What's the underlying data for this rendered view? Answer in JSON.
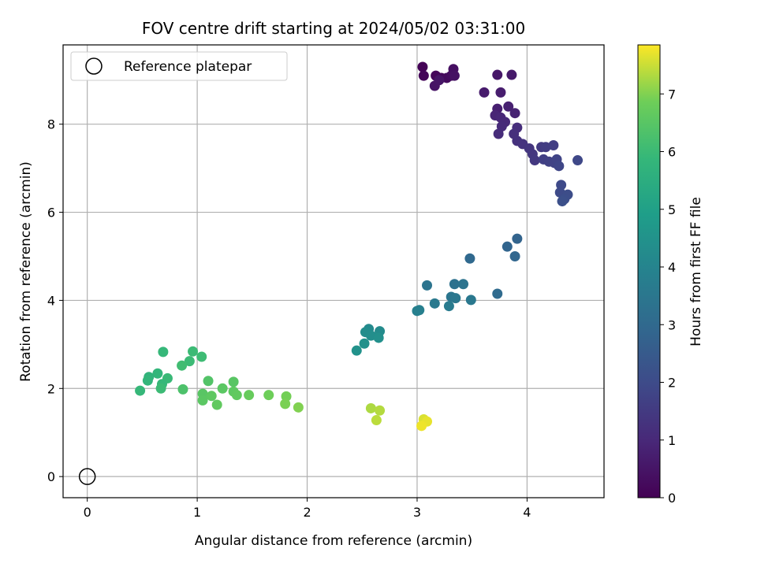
{
  "chart_data": {
    "type": "scatter",
    "title": "FOV centre drift starting at 2024/05/02 03:31:00",
    "xlabel": "Angular distance from reference (arcmin)",
    "ylabel": "Rotation from reference (arcmin)",
    "xlim": [
      -0.22,
      4.7
    ],
    "ylim": [
      -0.48,
      9.8
    ],
    "xticks": [
      0,
      1,
      2,
      3,
      4
    ],
    "yticks": [
      0,
      2,
      4,
      6,
      8
    ],
    "grid": true,
    "colormap": "viridis",
    "colorbar": {
      "label": "Hours from first FF file",
      "range": [
        0,
        7.85
      ],
      "ticks": [
        0,
        1,
        2,
        3,
        4,
        5,
        6,
        7
      ]
    },
    "reference": {
      "name": "Reference platepar",
      "x": 0,
      "y": 0
    },
    "legend": {
      "placement": "upper-left",
      "entries": [
        "Reference platepar"
      ]
    },
    "points": [
      {
        "x": 3.05,
        "y": 9.3,
        "h": 0.05
      },
      {
        "x": 3.06,
        "y": 9.1,
        "h": 0.1
      },
      {
        "x": 3.17,
        "y": 9.1,
        "h": 0.15
      },
      {
        "x": 3.22,
        "y": 9.05,
        "h": 0.2
      },
      {
        "x": 3.27,
        "y": 9.05,
        "h": 0.25
      },
      {
        "x": 3.31,
        "y": 9.1,
        "h": 0.3
      },
      {
        "x": 3.33,
        "y": 9.25,
        "h": 0.35
      },
      {
        "x": 3.34,
        "y": 9.1,
        "h": 0.4
      },
      {
        "x": 3.16,
        "y": 8.87,
        "h": 0.45
      },
      {
        "x": 3.2,
        "y": 9.0,
        "h": 0.5
      },
      {
        "x": 3.73,
        "y": 9.12,
        "h": 0.55
      },
      {
        "x": 3.86,
        "y": 9.12,
        "h": 0.6
      },
      {
        "x": 3.61,
        "y": 8.72,
        "h": 0.65
      },
      {
        "x": 3.76,
        "y": 8.72,
        "h": 0.7
      },
      {
        "x": 3.73,
        "y": 8.35,
        "h": 0.75
      },
      {
        "x": 3.83,
        "y": 8.4,
        "h": 0.8
      },
      {
        "x": 3.89,
        "y": 8.25,
        "h": 0.85
      },
      {
        "x": 3.71,
        "y": 8.2,
        "h": 0.9
      },
      {
        "x": 3.76,
        "y": 8.15,
        "h": 0.95
      },
      {
        "x": 3.8,
        "y": 8.05,
        "h": 1.0
      },
      {
        "x": 3.77,
        "y": 7.95,
        "h": 1.05
      },
      {
        "x": 3.74,
        "y": 7.78,
        "h": 1.1
      },
      {
        "x": 3.91,
        "y": 7.92,
        "h": 1.15
      },
      {
        "x": 3.88,
        "y": 7.78,
        "h": 1.2
      },
      {
        "x": 3.91,
        "y": 7.62,
        "h": 1.25
      },
      {
        "x": 3.96,
        "y": 7.55,
        "h": 1.3
      },
      {
        "x": 4.02,
        "y": 7.45,
        "h": 1.35
      },
      {
        "x": 4.05,
        "y": 7.32,
        "h": 1.4
      },
      {
        "x": 4.07,
        "y": 7.18,
        "h": 1.45
      },
      {
        "x": 4.13,
        "y": 7.48,
        "h": 1.5
      },
      {
        "x": 4.17,
        "y": 7.48,
        "h": 1.55
      },
      {
        "x": 4.24,
        "y": 7.52,
        "h": 1.6
      },
      {
        "x": 4.15,
        "y": 7.2,
        "h": 1.65
      },
      {
        "x": 4.2,
        "y": 7.15,
        "h": 1.7
      },
      {
        "x": 4.25,
        "y": 7.12,
        "h": 1.75
      },
      {
        "x": 4.27,
        "y": 7.2,
        "h": 1.8
      },
      {
        "x": 4.29,
        "y": 7.05,
        "h": 1.85
      },
      {
        "x": 4.46,
        "y": 7.18,
        "h": 1.9
      },
      {
        "x": 4.31,
        "y": 6.62,
        "h": 1.95
      },
      {
        "x": 4.3,
        "y": 6.45,
        "h": 2.0
      },
      {
        "x": 4.37,
        "y": 6.4,
        "h": 2.05
      },
      {
        "x": 4.34,
        "y": 6.3,
        "h": 2.1
      },
      {
        "x": 4.32,
        "y": 6.25,
        "h": 2.15
      },
      {
        "x": 3.91,
        "y": 5.4,
        "h": 2.8
      },
      {
        "x": 3.82,
        "y": 5.22,
        "h": 2.85
      },
      {
        "x": 3.89,
        "y": 5.0,
        "h": 2.9
      },
      {
        "x": 3.48,
        "y": 4.95,
        "h": 3.0
      },
      {
        "x": 3.73,
        "y": 4.15,
        "h": 3.05
      },
      {
        "x": 3.34,
        "y": 4.37,
        "h": 3.3
      },
      {
        "x": 3.42,
        "y": 4.37,
        "h": 3.35
      },
      {
        "x": 3.09,
        "y": 4.34,
        "h": 3.4
      },
      {
        "x": 3.31,
        "y": 4.08,
        "h": 3.45
      },
      {
        "x": 3.35,
        "y": 4.05,
        "h": 3.5
      },
      {
        "x": 3.49,
        "y": 4.01,
        "h": 3.55
      },
      {
        "x": 3.16,
        "y": 3.93,
        "h": 3.6
      },
      {
        "x": 3.29,
        "y": 3.87,
        "h": 3.65
      },
      {
        "x": 3.02,
        "y": 3.78,
        "h": 3.8
      },
      {
        "x": 3.0,
        "y": 3.76,
        "h": 3.85
      },
      {
        "x": 2.56,
        "y": 3.35,
        "h": 4.2
      },
      {
        "x": 2.66,
        "y": 3.3,
        "h": 4.25
      },
      {
        "x": 2.53,
        "y": 3.28,
        "h": 4.3
      },
      {
        "x": 2.58,
        "y": 3.2,
        "h": 4.35
      },
      {
        "x": 2.65,
        "y": 3.15,
        "h": 4.4
      },
      {
        "x": 2.52,
        "y": 3.02,
        "h": 4.45
      },
      {
        "x": 2.45,
        "y": 2.86,
        "h": 4.5
      },
      {
        "x": 0.69,
        "y": 2.83,
        "h": 5.9
      },
      {
        "x": 0.96,
        "y": 2.84,
        "h": 6.0
      },
      {
        "x": 1.04,
        "y": 2.72,
        "h": 6.05
      },
      {
        "x": 0.93,
        "y": 2.62,
        "h": 6.0
      },
      {
        "x": 0.86,
        "y": 2.52,
        "h": 6.1
      },
      {
        "x": 0.64,
        "y": 2.34,
        "h": 5.8
      },
      {
        "x": 0.56,
        "y": 2.26,
        "h": 5.75
      },
      {
        "x": 0.55,
        "y": 2.18,
        "h": 5.8
      },
      {
        "x": 0.73,
        "y": 2.23,
        "h": 5.95
      },
      {
        "x": 0.68,
        "y": 2.1,
        "h": 5.9
      },
      {
        "x": 0.67,
        "y": 2.0,
        "h": 6.0
      },
      {
        "x": 0.48,
        "y": 1.95,
        "h": 5.9
      },
      {
        "x": 0.87,
        "y": 1.98,
        "h": 6.3
      },
      {
        "x": 1.1,
        "y": 2.17,
        "h": 6.4
      },
      {
        "x": 1.33,
        "y": 2.15,
        "h": 6.5
      },
      {
        "x": 1.23,
        "y": 2.0,
        "h": 6.55
      },
      {
        "x": 1.33,
        "y": 1.93,
        "h": 6.6
      },
      {
        "x": 1.36,
        "y": 1.85,
        "h": 6.65
      },
      {
        "x": 1.05,
        "y": 1.88,
        "h": 6.5
      },
      {
        "x": 1.05,
        "y": 1.73,
        "h": 6.55
      },
      {
        "x": 1.13,
        "y": 1.83,
        "h": 6.6
      },
      {
        "x": 1.18,
        "y": 1.63,
        "h": 6.65
      },
      {
        "x": 1.47,
        "y": 1.85,
        "h": 6.75
      },
      {
        "x": 1.65,
        "y": 1.85,
        "h": 6.85
      },
      {
        "x": 1.81,
        "y": 1.82,
        "h": 6.9
      },
      {
        "x": 1.8,
        "y": 1.65,
        "h": 6.95
      },
      {
        "x": 1.92,
        "y": 1.57,
        "h": 7.0
      },
      {
        "x": 2.58,
        "y": 1.55,
        "h": 7.3
      },
      {
        "x": 2.66,
        "y": 1.5,
        "h": 7.35
      },
      {
        "x": 2.63,
        "y": 1.28,
        "h": 7.4
      },
      {
        "x": 3.06,
        "y": 1.3,
        "h": 7.6
      },
      {
        "x": 3.09,
        "y": 1.25,
        "h": 7.7
      },
      {
        "x": 3.04,
        "y": 1.15,
        "h": 7.75
      }
    ]
  }
}
